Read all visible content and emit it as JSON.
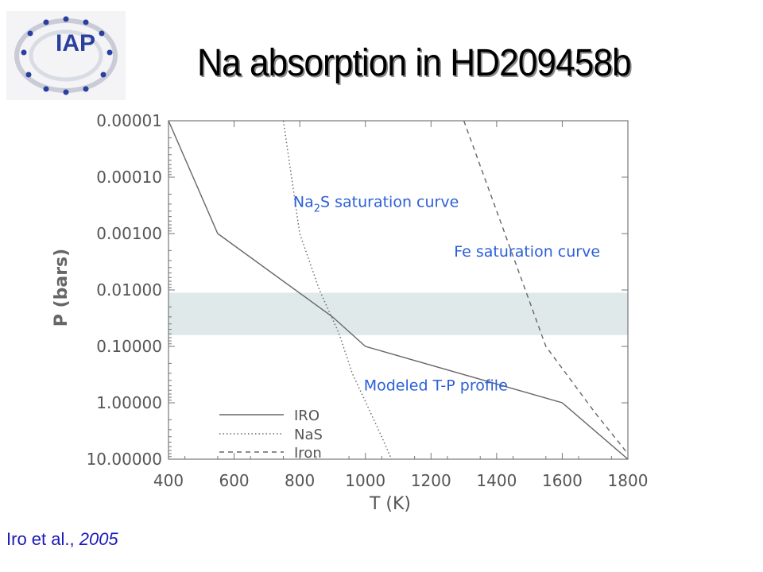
{
  "title": "Na absorption in HD209458b",
  "logo": {
    "text": "IAP"
  },
  "citation": {
    "authors": "Iro et al.,",
    "year": "2005"
  },
  "colors": {
    "annotation": "#2b5fd8",
    "band": "#dfe9ea",
    "line": "#666666",
    "citation": "#1a1ab8"
  },
  "chart_data": {
    "type": "line",
    "xlabel": "T (K)",
    "ylabel": "P (bars)",
    "xlim": [
      400,
      1800
    ],
    "ylim": [
      1e-05,
      10
    ],
    "yscale": "log",
    "yinverted": true,
    "xticks": [
      "400",
      "600",
      "800",
      "1000",
      "1200",
      "1400",
      "1600",
      "1800"
    ],
    "yticks": [
      "0.00001",
      "0.00010",
      "0.00100",
      "0.01000",
      "0.10000",
      "1.00000",
      "10.00000"
    ],
    "band": {
      "p_low": 0.0112,
      "p_high": 0.063
    },
    "series": [
      {
        "name": "IRO",
        "style": "solid",
        "points": [
          [
            400,
            1e-05
          ],
          [
            550,
            0.001
          ],
          [
            900,
            0.03
          ],
          [
            1000,
            0.1
          ],
          [
            1600,
            1.0
          ],
          [
            1800,
            10
          ]
        ]
      },
      {
        "name": "NaS",
        "style": "dotted",
        "points": [
          [
            750,
            1e-05
          ],
          [
            800,
            0.001
          ],
          [
            860,
            0.01
          ],
          [
            920,
            0.06
          ],
          [
            960,
            0.3
          ],
          [
            1040,
            3
          ],
          [
            1080,
            10
          ]
        ]
      },
      {
        "name": "Iron",
        "style": "dashed",
        "points": [
          [
            1300,
            1e-05
          ],
          [
            1450,
            0.0025
          ],
          [
            1550,
            0.1
          ],
          [
            1700,
            1.5
          ],
          [
            1800,
            8
          ]
        ]
      }
    ],
    "annotations": [
      {
        "text_main": "Na",
        "text_sub": "2",
        "text_rest": "S saturation curve",
        "x": 780,
        "p": 0.00028
      },
      {
        "text": "Fe saturation curve",
        "x": 1275,
        "p": 0.0021
      },
      {
        "text": "Modeled T-P profile",
        "x": 1000,
        "p": 0.5
      }
    ]
  }
}
